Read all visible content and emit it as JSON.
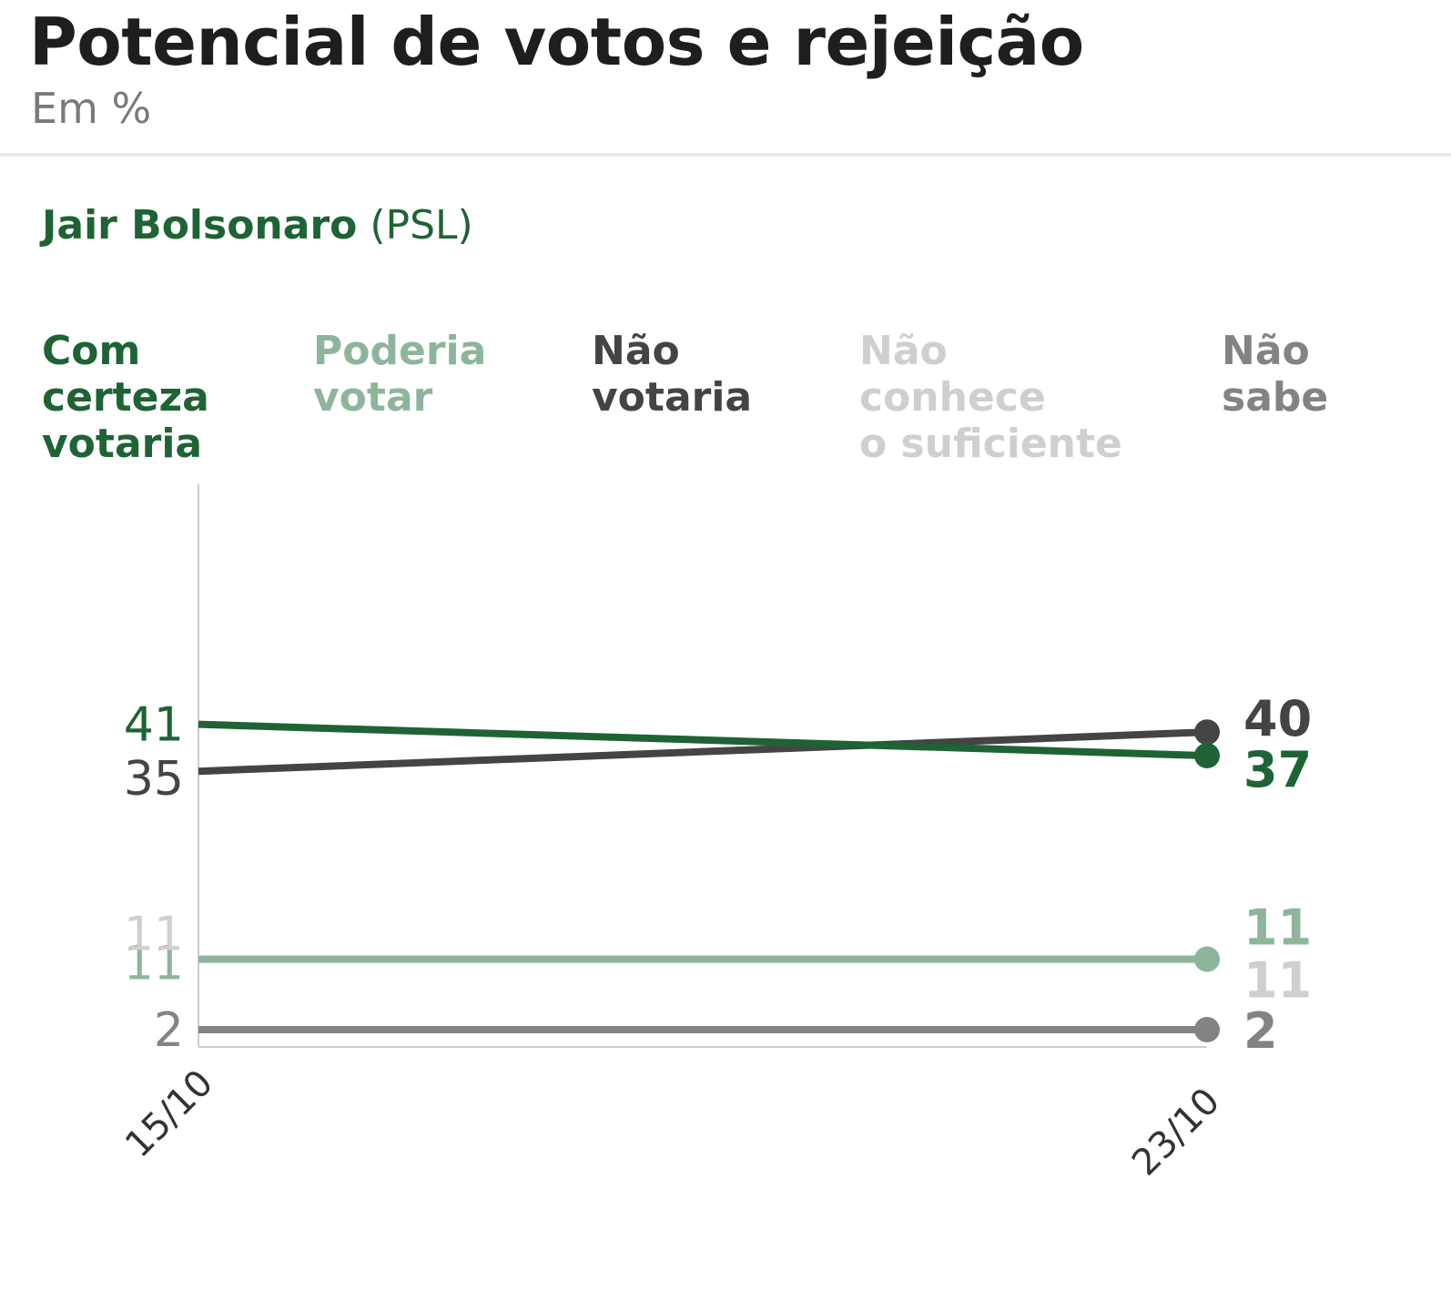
{
  "header": {
    "title": "Potencial de votos e rejeição",
    "subtitle": "Em %"
  },
  "candidate": {
    "name": "Jair Bolsonaro",
    "party": "(PSL)"
  },
  "chart_data": {
    "type": "line",
    "title": "Potencial de votos e rejeição",
    "subtitle": "Em %",
    "x": [
      "15/10",
      "23/10"
    ],
    "ylim": [
      0,
      100
    ],
    "series": [
      {
        "name": "Com certeza votaria",
        "lines": [
          "Com",
          "certeza",
          "votaria"
        ],
        "values": [
          41,
          37
        ],
        "color": "#1e6334"
      },
      {
        "name": "Poderia votar",
        "lines": [
          "Poderia",
          "votar"
        ],
        "values": [
          11,
          11
        ],
        "color": "#8db59b"
      },
      {
        "name": "Não votaria",
        "lines": [
          "Não",
          "votaria"
        ],
        "values": [
          35,
          40
        ],
        "color": "#444444"
      },
      {
        "name": "Não conhece o suficiente",
        "lines": [
          "Não",
          "conhece",
          "o suficiente"
        ],
        "values": [
          11,
          11
        ],
        "color": "#cfcfcf"
      },
      {
        "name": "Não sabe",
        "lines": [
          "Não",
          "sabe"
        ],
        "values": [
          2,
          2
        ],
        "color": "#838383"
      }
    ]
  }
}
